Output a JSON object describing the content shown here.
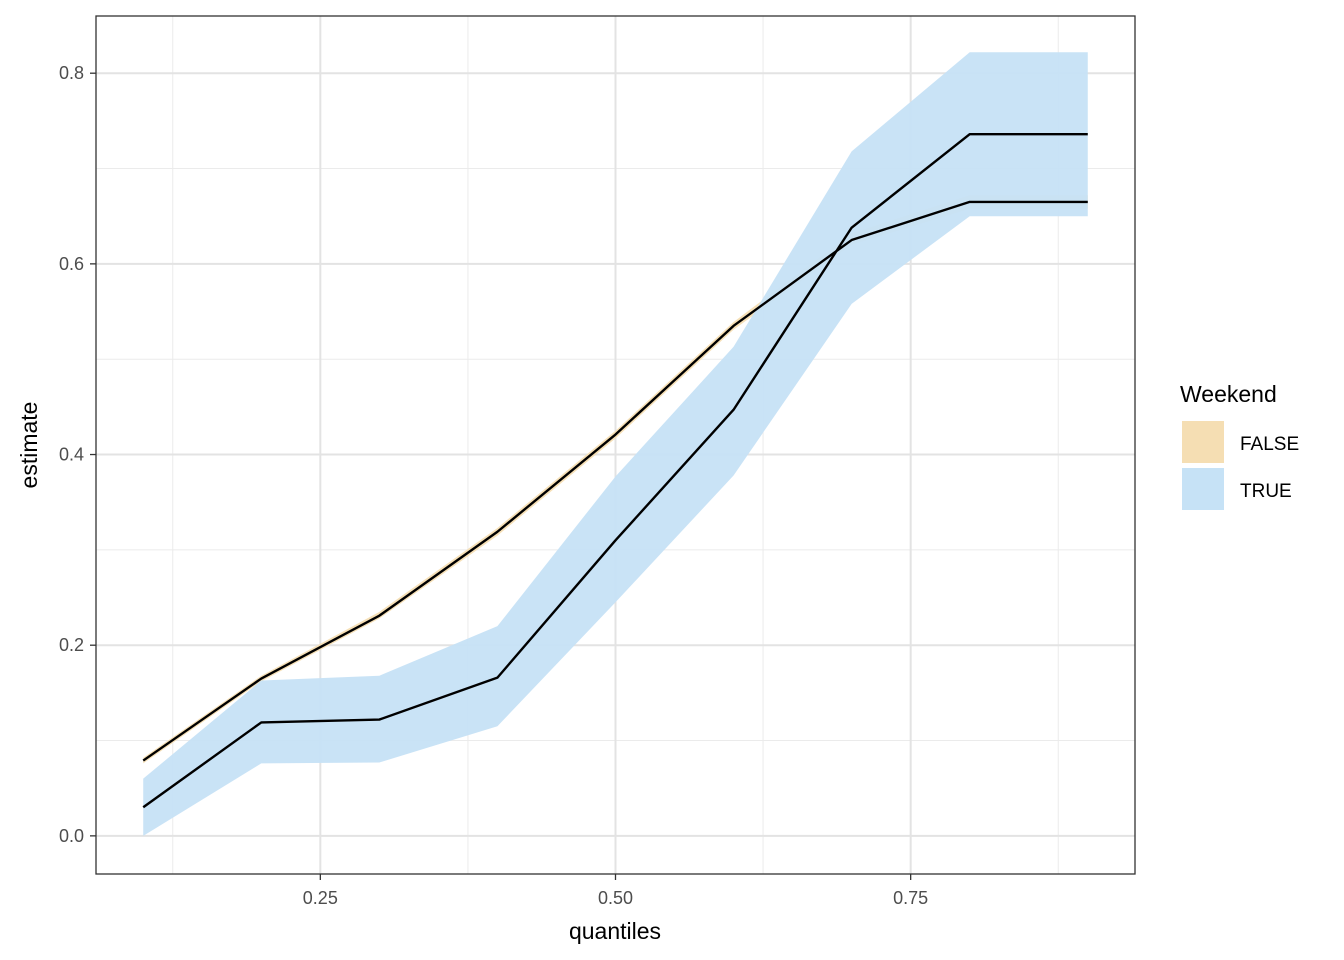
{
  "chart_data": {
    "type": "line",
    "xlabel": "quantiles",
    "ylabel": "estimate",
    "xlim": [
      0.06,
      0.94
    ],
    "ylim": [
      -0.04,
      0.86
    ],
    "x_ticks": [
      0.25,
      0.5,
      0.75
    ],
    "x_tick_labels": [
      "0.25",
      "0.50",
      "0.75"
    ],
    "x_minor_ticks": [
      0.125,
      0.375,
      0.625,
      0.875
    ],
    "y_ticks": [
      0.0,
      0.2,
      0.4,
      0.6,
      0.8
    ],
    "y_tick_labels": [
      "0.0",
      "0.2",
      "0.4",
      "0.6",
      "0.8"
    ],
    "y_minor_ticks": [
      0.1,
      0.3,
      0.5,
      0.7
    ],
    "grid": true,
    "legend": {
      "title": "Weekend",
      "position": "right",
      "entries": [
        {
          "label": "FALSE",
          "color": "#f5deb3"
        },
        {
          "label": "TRUE",
          "color": "#c6e2f6"
        }
      ]
    },
    "x": [
      0.1,
      0.2,
      0.3,
      0.4,
      0.5,
      0.6,
      0.7,
      0.8,
      0.9
    ],
    "series": [
      {
        "name": "FALSE",
        "fill": "#f5deb3",
        "line_color": "#000000",
        "values": [
          0.079,
          0.165,
          0.231,
          0.319,
          0.421,
          0.535,
          0.625,
          0.665,
          0.665
        ],
        "lower": [
          0.076,
          0.162,
          0.228,
          0.315,
          0.417,
          0.531,
          0.62,
          0.658,
          0.658
        ],
        "upper": [
          0.082,
          0.168,
          0.235,
          0.323,
          0.425,
          0.539,
          0.632,
          0.672,
          0.672
        ]
      },
      {
        "name": "TRUE",
        "fill": "#c6e2f6",
        "line_color": "#000000",
        "values": [
          0.03,
          0.119,
          0.122,
          0.166,
          0.31,
          0.447,
          0.638,
          0.736,
          0.736
        ],
        "lower": [
          0.0,
          0.076,
          0.077,
          0.115,
          0.245,
          0.378,
          0.558,
          0.65,
          0.65
        ],
        "upper": [
          0.06,
          0.163,
          0.168,
          0.22,
          0.377,
          0.513,
          0.718,
          0.822,
          0.822
        ]
      }
    ]
  }
}
